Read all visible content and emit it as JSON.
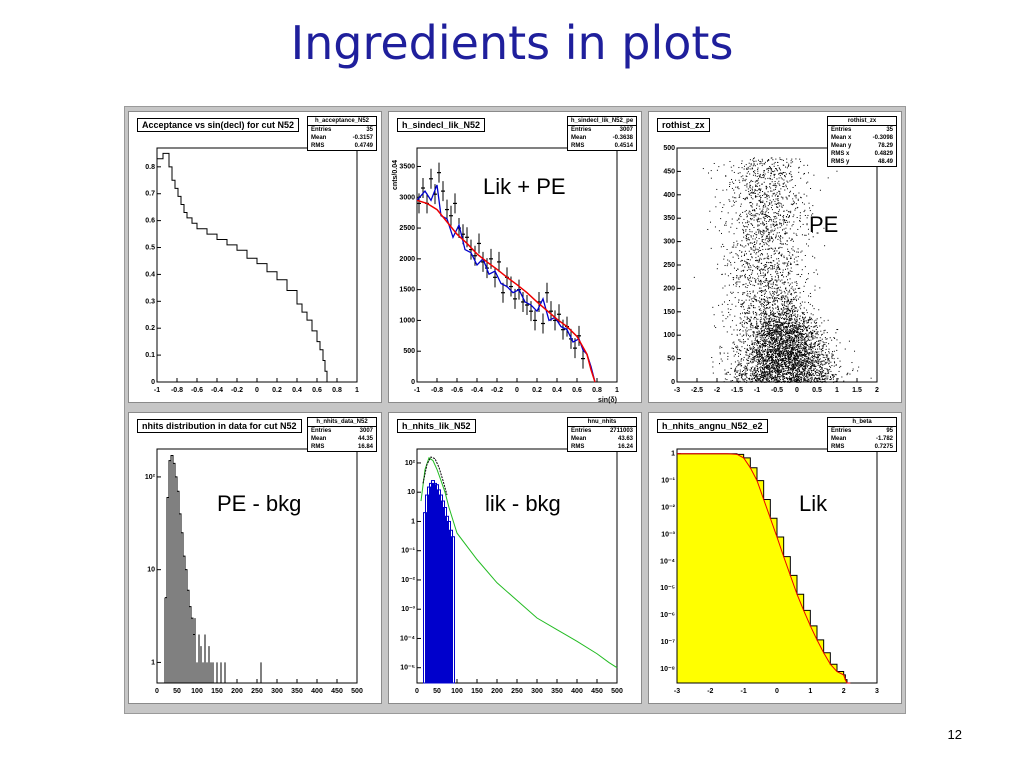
{
  "slide": {
    "title": "Ingredients in plots",
    "page_number": "12"
  },
  "chart_data": [
    {
      "id": "p1",
      "type": "line",
      "title": "Acceptance vs sin(decl) for cut N52",
      "stats_title": "h_acceptance_N52",
      "stats": [
        [
          "Entries",
          "35"
        ],
        [
          "Mean",
          "-0.3157"
        ],
        [
          "RMS",
          "0.4749"
        ]
      ],
      "xlim": [
        -1,
        1
      ],
      "ylim": [
        0,
        0.87
      ],
      "xticks": [
        "-1",
        "-0.8",
        "-0.6",
        "-0.4",
        "-0.2",
        "0",
        "0.2",
        "0.4",
        "0.6",
        "0.8",
        "1"
      ],
      "yticks": [
        "0",
        "0.1",
        "0.2",
        "0.3",
        "0.4",
        "0.5",
        "0.6",
        "0.7",
        "0.8"
      ],
      "x": [
        -1,
        -0.97,
        -0.94,
        -0.91,
        -0.88,
        -0.85,
        -0.82,
        -0.79,
        -0.76,
        -0.73,
        -0.7,
        -0.65,
        -0.6,
        -0.5,
        -0.4,
        -0.3,
        -0.2,
        -0.1,
        0,
        0.1,
        0.2,
        0.3,
        0.4,
        0.45,
        0.5,
        0.55,
        0.6,
        0.63,
        0.66,
        0.68,
        0.7
      ],
      "values": [
        0.83,
        0.83,
        0.85,
        0.85,
        0.8,
        0.75,
        0.72,
        0.69,
        0.66,
        0.63,
        0.61,
        0.59,
        0.57,
        0.55,
        0.53,
        0.51,
        0.49,
        0.46,
        0.44,
        0.41,
        0.38,
        0.34,
        0.29,
        0.26,
        0.23,
        0.19,
        0.15,
        0.12,
        0.08,
        0.04,
        0
      ]
    },
    {
      "id": "p2",
      "type": "line",
      "title": "h_sindecl_lik_N52",
      "stats_title": "h_sindecl_lik_N52_pe",
      "stats": [
        [
          "Entries",
          "3007"
        ],
        [
          "Mean",
          "-0.3638"
        ],
        [
          "RMS",
          "0.4514"
        ]
      ],
      "xlim": [
        -1,
        1
      ],
      "ylim": [
        0,
        3800
      ],
      "xticks": [
        "-1",
        "-0.8",
        "-0.6",
        "-0.4",
        "-0.2",
        "0",
        "0.2",
        "0.4",
        "0.6",
        "0.8",
        "1"
      ],
      "yticks": [
        "0",
        "500",
        "1000",
        "1500",
        "2000",
        "2500",
        "3000",
        "3500"
      ],
      "xlabel": "sin(δ)",
      "ylabel": "cnts/0.04",
      "overlay": "Lik + PE",
      "series": [
        {
          "name": "data",
          "color": "#000000",
          "x": [
            -0.98,
            -0.94,
            -0.9,
            -0.86,
            -0.82,
            -0.78,
            -0.74,
            -0.7,
            -0.66,
            -0.62,
            -0.58,
            -0.54,
            -0.5,
            -0.46,
            -0.42,
            -0.38,
            -0.34,
            -0.3,
            -0.26,
            -0.22,
            -0.18,
            -0.14,
            -0.1,
            -0.06,
            -0.02,
            0.02,
            0.06,
            0.1,
            0.14,
            0.18,
            0.22,
            0.26,
            0.3,
            0.34,
            0.38,
            0.42,
            0.46,
            0.5,
            0.54,
            0.58,
            0.62,
            0.66
          ],
          "values": [
            2900,
            3150,
            2900,
            3300,
            3050,
            3400,
            3100,
            2800,
            2700,
            2900,
            2500,
            2400,
            2350,
            2150,
            2050,
            2250,
            1950,
            1850,
            2000,
            1700,
            1950,
            1450,
            1700,
            1550,
            1350,
            1500,
            1300,
            1250,
            1150,
            1000,
            1300,
            950,
            1450,
            1150,
            1000,
            1100,
            850,
            900,
            700,
            550,
            750,
            380
          ]
        },
        {
          "name": "pe",
          "color": "#0000cc",
          "x": [
            -1,
            -0.92,
            -0.86,
            -0.8,
            -0.76,
            -0.7,
            -0.64,
            -0.58,
            -0.52,
            -0.46,
            -0.4,
            -0.34,
            -0.28,
            -0.22,
            -0.16,
            -0.1,
            -0.04,
            0.02,
            0.08,
            0.14,
            0.2,
            0.26,
            0.32,
            0.38,
            0.44,
            0.5,
            0.56,
            0.62,
            0.66,
            0.7,
            0.74,
            0.78
          ],
          "values": [
            2950,
            3100,
            2950,
            3200,
            2700,
            2650,
            2350,
            2550,
            2150,
            2100,
            1900,
            2000,
            1750,
            1800,
            1600,
            1550,
            1450,
            1500,
            1300,
            1250,
            1150,
            1350,
            1000,
            1050,
            900,
            850,
            650,
            700,
            520,
            450,
            250,
            0
          ]
        },
        {
          "name": "lik",
          "color": "#ee0000",
          "x": [
            -1,
            -0.9,
            -0.8,
            -0.7,
            -0.6,
            -0.5,
            -0.4,
            -0.3,
            -0.2,
            -0.1,
            0,
            0.1,
            0.2,
            0.3,
            0.4,
            0.5,
            0.6,
            0.7,
            0.74,
            0.78
          ],
          "values": [
            2950,
            2900,
            2800,
            2600,
            2400,
            2250,
            2080,
            1950,
            1830,
            1700,
            1580,
            1450,
            1300,
            1160,
            1020,
            900,
            740,
            450,
            200,
            0
          ]
        }
      ]
    },
    {
      "id": "p3",
      "type": "scatter",
      "title": "rothist_zx",
      "stats_title": "rothist_zx",
      "stats": [
        [
          "Entries",
          "35"
        ],
        [
          "Mean x",
          "-0.3098"
        ],
        [
          "Mean y",
          "78.29"
        ],
        [
          "RMS x",
          "0.4829"
        ],
        [
          "RMS y",
          "48.49"
        ]
      ],
      "xlim": [
        -3,
        2
      ],
      "ylim": [
        0,
        500
      ],
      "xticks": [
        "-3",
        "-2.5",
        "-2",
        "-1.5",
        "-1",
        "-0.5",
        "0",
        "0.5",
        "1",
        "1.5",
        "2"
      ],
      "yticks": [
        "0",
        "50",
        "100",
        "150",
        "200",
        "250",
        "300",
        "350",
        "400",
        "450",
        "500"
      ],
      "overlay": "PE"
    },
    {
      "id": "p4",
      "type": "line",
      "title": "nhits distribution in data for cut N52",
      "stats_title": "h_nhits_data_N52",
      "stats": [
        [
          "Entries",
          "3007"
        ],
        [
          "Mean",
          "44.35"
        ],
        [
          "RMS",
          "16.84"
        ]
      ],
      "xlim": [
        0,
        500
      ],
      "ylim": [
        0.6,
        200
      ],
      "yscale": "log",
      "xticks": [
        "0",
        "50",
        "100",
        "150",
        "200",
        "250",
        "300",
        "350",
        "400",
        "450",
        "500"
      ],
      "yticks": [
        "1",
        "10",
        "10²"
      ],
      "overlay": "PE - bkg",
      "x": [
        20,
        25,
        30,
        35,
        40,
        45,
        50,
        55,
        60,
        65,
        70,
        75,
        80,
        85,
        90,
        95,
        100,
        105,
        110,
        115,
        120,
        125,
        130,
        135,
        140,
        150,
        160,
        170,
        260
      ],
      "values": [
        5,
        60,
        150,
        170,
        140,
        100,
        70,
        40,
        25,
        14,
        10,
        6,
        4,
        3,
        2,
        3,
        1,
        2,
        1.5,
        1,
        2,
        1,
        1.5,
        1,
        1,
        1,
        1,
        1,
        1
      ]
    },
    {
      "id": "p5",
      "type": "line",
      "title": "h_nhits_lik_N52",
      "stats_title": "hnu_nhits",
      "stats": [
        [
          "Entries",
          "2711003"
        ],
        [
          "Mean",
          "43.63"
        ],
        [
          "RMS",
          "16.24"
        ]
      ],
      "xlim": [
        0,
        500
      ],
      "ylim": [
        3e-06,
        300
      ],
      "yscale": "log",
      "xticks": [
        "0",
        "50",
        "100",
        "150",
        "200",
        "250",
        "300",
        "350",
        "400",
        "450",
        "500"
      ],
      "yticks": [
        "10⁻⁵",
        "10⁻⁴",
        "10⁻³",
        "10⁻²",
        "10⁻¹",
        "1",
        "10",
        "10²"
      ],
      "overlay": "lik - bkg",
      "series": [
        {
          "name": "mc",
          "color": "#22bb22",
          "x": [
            10,
            20,
            30,
            40,
            50,
            60,
            70,
            80,
            100,
            150,
            200,
            250,
            300,
            350,
            400,
            450,
            480,
            500
          ],
          "values": [
            5,
            60,
            150,
            120,
            60,
            25,
            10,
            3,
            0.4,
            0.05,
            0.008,
            0.002,
            0.0005,
            0.0002,
            8e-05,
            3e-05,
            1.5e-05,
            1e-05
          ]
        },
        {
          "name": "fit",
          "color": "#000000",
          "x": [
            15,
            25,
            35,
            45,
            55,
            65,
            75
          ],
          "values": [
            20,
            90,
            160,
            140,
            70,
            25,
            8
          ]
        },
        {
          "name": "data",
          "color": "#0000cc",
          "x": [
            20,
            25,
            30,
            35,
            40,
            45,
            50,
            55,
            60,
            65,
            70,
            75,
            80,
            85,
            90
          ],
          "values": [
            2,
            8,
            15,
            20,
            25,
            20,
            18,
            12,
            8,
            5,
            3,
            1.5,
            1,
            0.5,
            0.3
          ]
        }
      ]
    },
    {
      "id": "p6",
      "type": "area",
      "title": "h_nhits_angnu_N52_e2",
      "stats_title": "h_beta",
      "stats": [
        [
          "Entries",
          "95"
        ],
        [
          "Mean",
          "-1.782"
        ],
        [
          "RMS",
          "0.7275"
        ]
      ],
      "xlim": [
        -3,
        3
      ],
      "ylim": [
        3e-09,
        1.5
      ],
      "yscale": "log",
      "xticks": [
        "-3",
        "-2",
        "-1",
        "0",
        "1",
        "2",
        "3"
      ],
      "yticks": [
        "10⁻⁸",
        "10⁻⁷",
        "10⁻⁶",
        "10⁻⁵",
        "10⁻⁴",
        "10⁻³",
        "10⁻²",
        "10⁻¹",
        "1"
      ],
      "overlay": "Lik",
      "x": [
        -3,
        -2.5,
        -2,
        -1.5,
        -1.2,
        -1,
        -0.8,
        -0.6,
        -0.4,
        -0.2,
        0,
        0.2,
        0.4,
        0.6,
        0.8,
        1,
        1.2,
        1.4,
        1.6,
        1.8,
        2,
        2.05,
        2.1,
        2.2
      ],
      "values": [
        1,
        1,
        1,
        1,
        0.95,
        0.7,
        0.3,
        0.1,
        0.02,
        0.004,
        0.0008,
        0.00015,
        3e-05,
        6e-06,
        1.5e-06,
        4e-07,
        1.2e-07,
        4e-08,
        1.5e-08,
        8e-09,
        6e-09,
        4e-09,
        3e-09,
        3e-09
      ]
    }
  ]
}
